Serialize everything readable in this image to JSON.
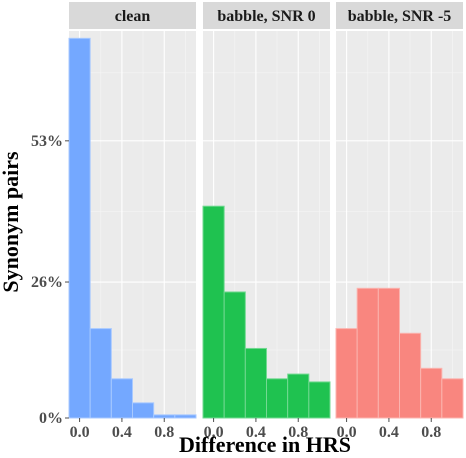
{
  "chart_data": {
    "type": "bar",
    "subtype": "faceted-histogram",
    "xlabel": "Difference in HRS",
    "ylabel": "Synonym pairs",
    "x_ticks": [
      0.0,
      0.4,
      0.8
    ],
    "x_tick_labels": [
      "0.0",
      "0.4",
      "0.8"
    ],
    "y_ticks": [
      0,
      0.26,
      0.53
    ],
    "y_tick_labels": [
      "0%",
      "26%",
      "53%"
    ],
    "xlim": [
      -0.1,
      1.1
    ],
    "ylim": [
      0,
      0.74
    ],
    "bin_width": 0.2,
    "bin_centers": [
      0.0,
      0.2,
      0.4,
      0.6,
      0.8,
      1.0
    ],
    "grid": true,
    "legend": "none",
    "panels": [
      {
        "title": "clean",
        "color": "#619CFF",
        "values": [
          0.726,
          0.171,
          0.075,
          0.029,
          0.006,
          0.006
        ]
      },
      {
        "title": "babble, SNR 0",
        "color": "#00BA38",
        "values": [
          0.405,
          0.241,
          0.133,
          0.075,
          0.084,
          0.069
        ]
      },
      {
        "title": "babble, SNR -5",
        "color": "#F8766D",
        "values": [
          0.171,
          0.248,
          0.248,
          0.162,
          0.095,
          0.075
        ]
      }
    ]
  }
}
